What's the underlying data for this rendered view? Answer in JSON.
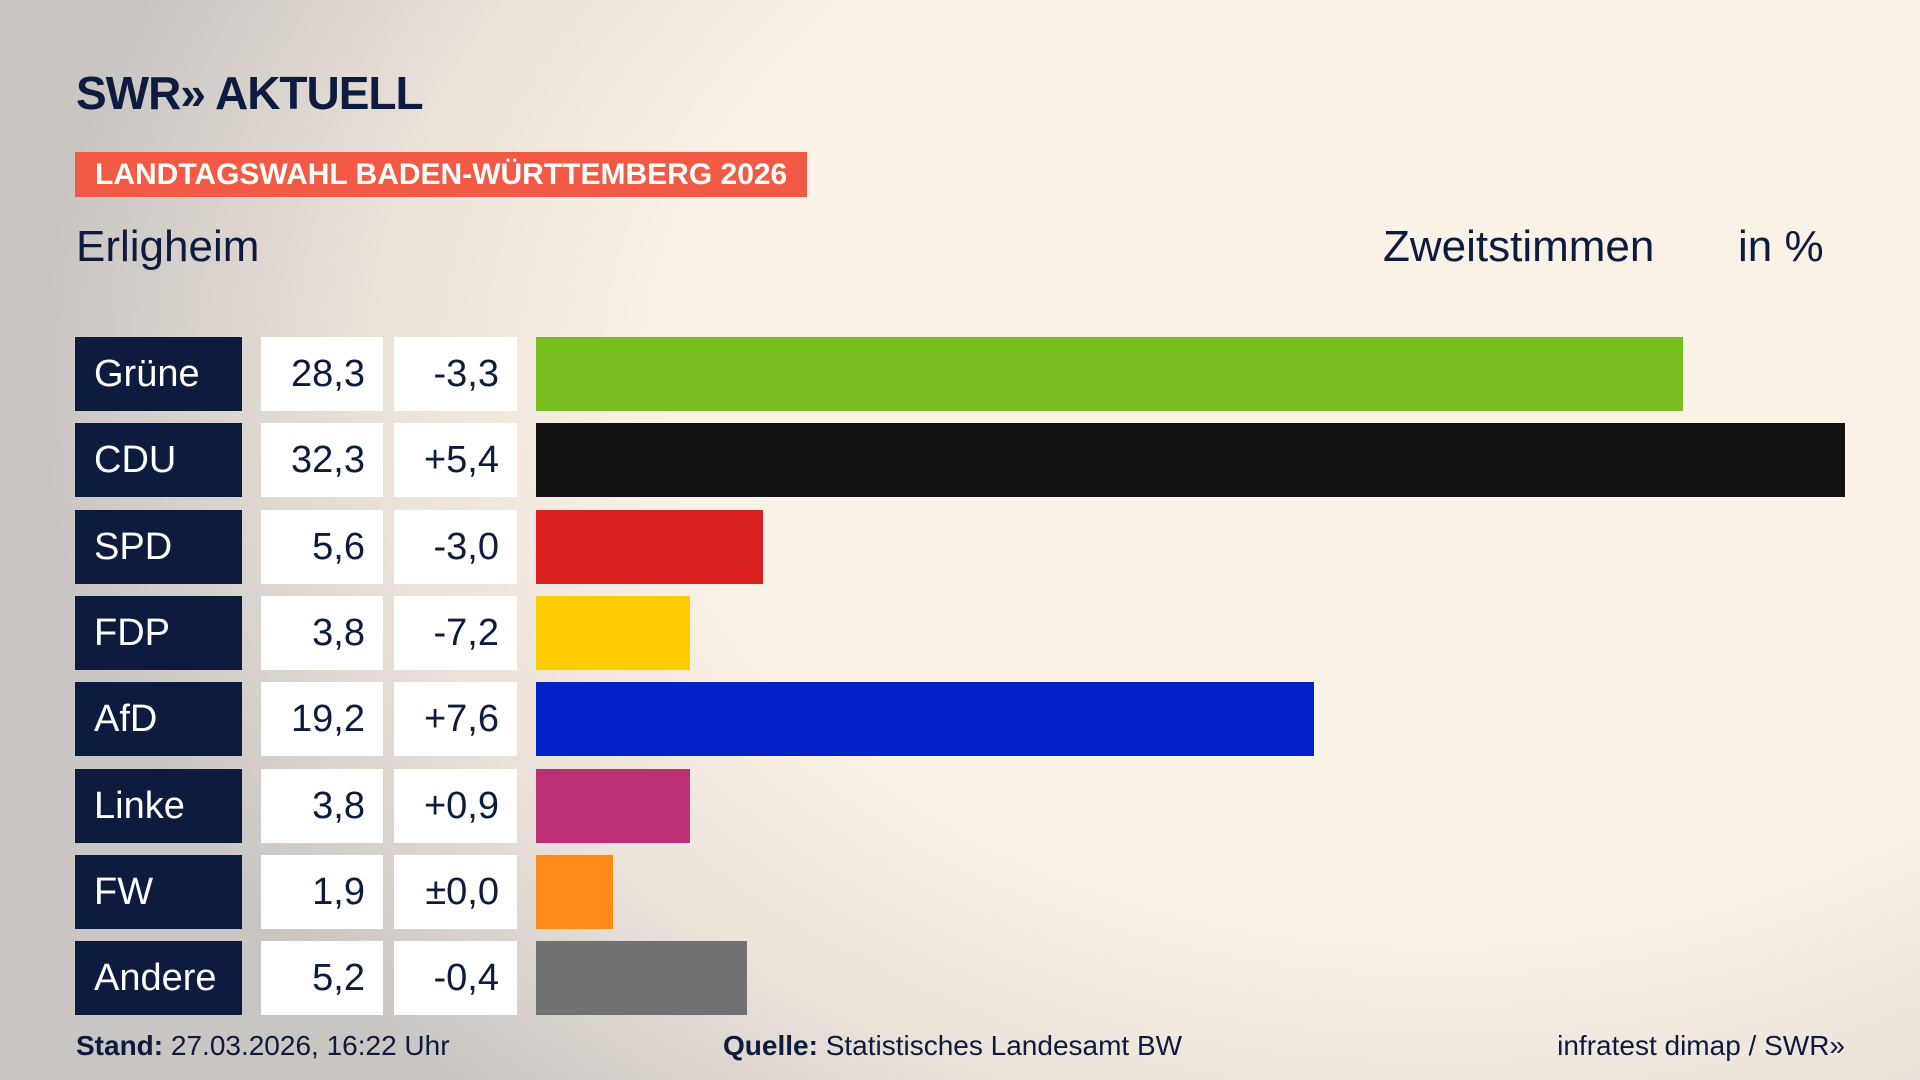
{
  "logo": "SWR» AKTUELL",
  "banner": "LANDTAGSWAHL BADEN-WÜRTTEMBERG 2026",
  "chart_data": {
    "type": "bar",
    "orientation": "horizontal",
    "title": "Erligheim",
    "measure": "Zweitstimmen",
    "unit": "in %",
    "categories": [
      "Grüne",
      "CDU",
      "SPD",
      "FDP",
      "AfD",
      "Linke",
      "FW",
      "Andere"
    ],
    "values": [
      28.3,
      32.3,
      5.6,
      3.8,
      19.2,
      3.8,
      1.9,
      5.2
    ],
    "value_labels": [
      "28,3",
      "32,3",
      "5,6",
      "3,8",
      "19,2",
      "3,8",
      "1,9",
      "5,2"
    ],
    "change_labels": [
      "-3,3",
      "+5,4",
      "-3,0",
      "-7,2",
      "+7,6",
      "+0,9",
      "±0,0",
      "-0,4"
    ],
    "colors": [
      "#78be1e",
      "#111111",
      "#d9201e",
      "#ffcc00",
      "#0021c7",
      "#bd3075",
      "#ff8c1a",
      "#707173"
    ]
  },
  "footer": {
    "stand_label": "Stand:",
    "stand": "27.03.2026, 16:22 Uhr",
    "source_label": "Quelle:",
    "source": "Statistisches Landesamt BW",
    "credit": "infratest dimap / SWR»"
  }
}
